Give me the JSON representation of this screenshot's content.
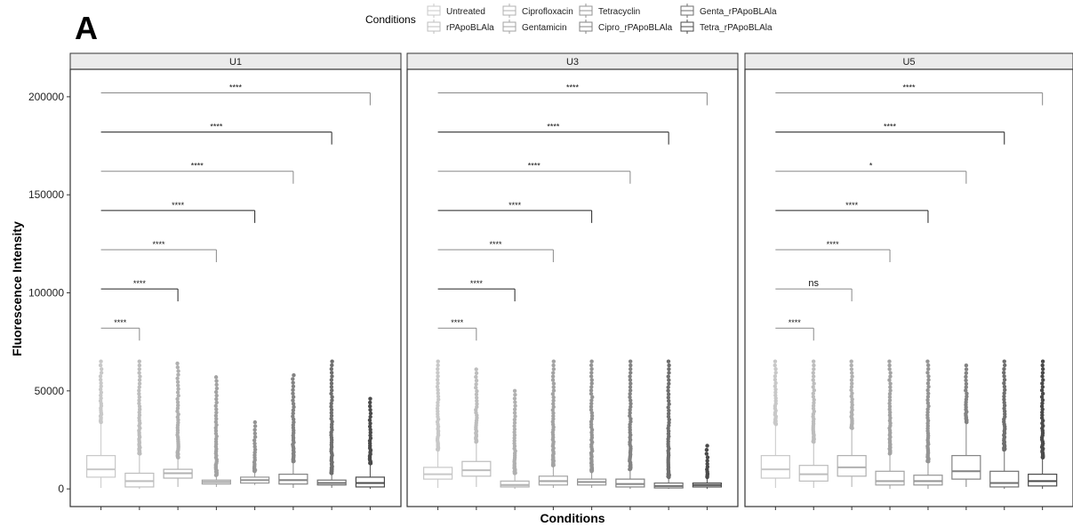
{
  "panel_label": "A",
  "legend": {
    "title": "Conditions",
    "items": [
      {
        "label": "Untreated",
        "color": "#c8c8c8"
      },
      {
        "label": "rPApoBLAla",
        "color": "#bdbdbd"
      },
      {
        "label": "Ciprofloxacin",
        "color": "#b0b0b0"
      },
      {
        "label": "Gentamicin",
        "color": "#a3a3a3"
      },
      {
        "label": "Tetracyclin",
        "color": "#949494"
      },
      {
        "label": "Cipro_rPApoBLAla",
        "color": "#838383"
      },
      {
        "label": "Genta_rPApoBLAla",
        "color": "#6e6e6e"
      },
      {
        "label": "Tetra_rPApoBLAla",
        "color": "#4a4a4a"
      }
    ]
  },
  "chart_data": {
    "type": "box",
    "xlabel": "Conditions",
    "ylabel": "Fluorescence Intensity",
    "ylim": [
      -9000,
      214000
    ],
    "yticks": [
      0,
      50000,
      100000,
      150000,
      200000
    ],
    "ytick_labels": [
      "0",
      "50000",
      "100000",
      "150000",
      "200000"
    ],
    "categories": [
      "Untreated",
      "rPApoBLAla",
      "Ciprofloxacin",
      "Gentamicin",
      "Tetracyclin",
      "Cipro_rPApoBLAla",
      "Genta_rPApoBLAla",
      "Tetra_rPApoBLAla"
    ],
    "bracket_y": [
      82000,
      102000,
      122000,
      142000,
      162000,
      182000,
      202000
    ],
    "panels": [
      {
        "title": "U1",
        "boxes": [
          {
            "min": 500,
            "q1": 6000,
            "median": 10000,
            "q3": 17000,
            "whisker_high": 34000,
            "outlier_max": 65000
          },
          {
            "min": 0,
            "q1": 1000,
            "median": 4000,
            "q3": 8000,
            "whisker_high": 18000,
            "outlier_max": 65000
          },
          {
            "min": 1000,
            "q1": 5500,
            "median": 8000,
            "q3": 10000,
            "whisker_high": 16000,
            "outlier_max": 64000
          },
          {
            "min": 1000,
            "q1": 2500,
            "median": 3500,
            "q3": 4500,
            "whisker_high": 7000,
            "outlier_max": 57000
          },
          {
            "min": 2000,
            "q1": 3000,
            "median": 4500,
            "q3": 6000,
            "whisker_high": 9000,
            "outlier_max": 34000
          },
          {
            "min": 500,
            "q1": 2500,
            "median": 4500,
            "q3": 7500,
            "whisker_high": 14000,
            "outlier_max": 58000
          },
          {
            "min": 500,
            "q1": 2000,
            "median": 3000,
            "q3": 4500,
            "whisker_high": 8000,
            "outlier_max": 65000
          },
          {
            "min": 0,
            "q1": 1000,
            "median": 3000,
            "q3": 6000,
            "whisker_high": 13000,
            "outlier_max": 46000
          }
        ],
        "comparisons": [
          "****",
          "****",
          "****",
          "****",
          "****",
          "****",
          "****"
        ]
      },
      {
        "title": "U3",
        "boxes": [
          {
            "min": 500,
            "q1": 5000,
            "median": 7500,
            "q3": 11000,
            "whisker_high": 20000,
            "outlier_max": 65000
          },
          {
            "min": 1000,
            "q1": 6500,
            "median": 9500,
            "q3": 14000,
            "whisker_high": 24000,
            "outlier_max": 61000
          },
          {
            "min": 0,
            "q1": 1000,
            "median": 2000,
            "q3": 4000,
            "whisker_high": 8000,
            "outlier_max": 50000
          },
          {
            "min": 500,
            "q1": 2000,
            "median": 4000,
            "q3": 6500,
            "whisker_high": 12000,
            "outlier_max": 65000
          },
          {
            "min": 500,
            "q1": 2000,
            "median": 3500,
            "q3": 5000,
            "whisker_high": 9000,
            "outlier_max": 65000
          },
          {
            "min": 0,
            "q1": 1000,
            "median": 2500,
            "q3": 5000,
            "whisker_high": 10000,
            "outlier_max": 65000
          },
          {
            "min": 0,
            "q1": 500,
            "median": 1500,
            "q3": 3000,
            "whisker_high": 6000,
            "outlier_max": 65000
          },
          {
            "min": 0,
            "q1": 1000,
            "median": 2000,
            "q3": 3000,
            "whisker_high": 6000,
            "outlier_max": 22000
          }
        ],
        "comparisons": [
          "****",
          "****",
          "****",
          "****",
          "****",
          "****",
          "****"
        ]
      },
      {
        "title": "U5",
        "boxes": [
          {
            "min": 500,
            "q1": 5500,
            "median": 10000,
            "q3": 17000,
            "whisker_high": 33000,
            "outlier_max": 65000
          },
          {
            "min": 500,
            "q1": 4000,
            "median": 7500,
            "q3": 12000,
            "whisker_high": 24000,
            "outlier_max": 65000
          },
          {
            "min": 1000,
            "q1": 6500,
            "median": 11000,
            "q3": 17000,
            "whisker_high": 31000,
            "outlier_max": 65000
          },
          {
            "min": 0,
            "q1": 2000,
            "median": 4000,
            "q3": 9000,
            "whisker_high": 18000,
            "outlier_max": 65000
          },
          {
            "min": 0,
            "q1": 2000,
            "median": 4000,
            "q3": 7000,
            "whisker_high": 14000,
            "outlier_max": 65000
          },
          {
            "min": 1000,
            "q1": 5000,
            "median": 9000,
            "q3": 17000,
            "whisker_high": 34000,
            "outlier_max": 63000
          },
          {
            "min": 0,
            "q1": 1000,
            "median": 3000,
            "q3": 9000,
            "whisker_high": 20000,
            "outlier_max": 65000
          },
          {
            "min": 0,
            "q1": 1500,
            "median": 4000,
            "q3": 7500,
            "whisker_high": 16000,
            "outlier_max": 65000
          }
        ],
        "comparisons": [
          "****",
          "ns",
          "****",
          "****",
          "*",
          "****",
          "****"
        ]
      }
    ]
  }
}
